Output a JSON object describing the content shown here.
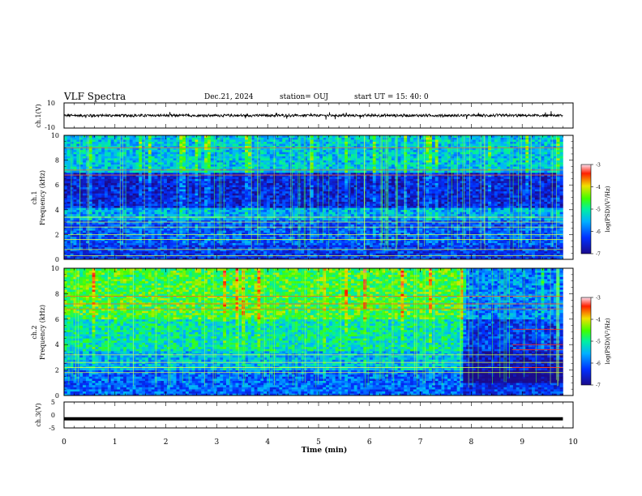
{
  "header": {
    "title": "VLF Spectra",
    "date": "Dec.21, 2024",
    "station": "station= OUJ",
    "start_ut": "start  UT =  15: 40: 0"
  },
  "chart_data": [
    {
      "id": "ch1-waveform",
      "type": "line",
      "ylabel": "ch.1(V)",
      "ylim": [
        -10,
        10
      ],
      "yticks": [
        "10",
        "-10"
      ],
      "xlim": [
        0,
        10
      ],
      "note": "noisy waveform centred near 0 V, amplitude about ±1.5 V, from 0 to ~9.8 min"
    },
    {
      "id": "ch1-spectrogram",
      "type": "heatmap",
      "ylabel_line1": "ch.1",
      "ylabel_line2": "Frequency  (kHz)",
      "ylim": [
        0,
        10
      ],
      "yticks": [
        "0",
        "2",
        "4",
        "6",
        "8",
        "10"
      ],
      "xlim": [
        0,
        10
      ],
      "data_end_min": 9.8,
      "colorbar": {
        "label": "log(PSD)(V²/Hz)",
        "range": [
          -7,
          -3
        ],
        "ticks": [
          "-3",
          "-4",
          "-5",
          "-6",
          "-7"
        ]
      },
      "bands": [
        {
          "f0": 0.0,
          "f1": 1.2,
          "level": -6.3
        },
        {
          "f0": 1.2,
          "f1": 3.2,
          "level": -6.1
        },
        {
          "f0": 3.2,
          "f1": 4.2,
          "level": -5.6
        },
        {
          "f0": 4.2,
          "f1": 7.0,
          "level": -6.5
        },
        {
          "f0": 7.0,
          "f1": 10.0,
          "level": -5.4
        }
      ],
      "lines_khz": [
        0.3,
        0.8,
        1.6,
        2.0,
        2.6,
        3.0,
        3.4,
        6.8,
        7.2,
        9.0
      ]
    },
    {
      "id": "ch2-spectrogram",
      "type": "heatmap",
      "ylabel_line1": "ch.2",
      "ylabel_line2": "Frequency  (kHz)",
      "ylim": [
        0,
        10
      ],
      "yticks": [
        "0",
        "2",
        "4",
        "6",
        "8",
        "10"
      ],
      "xlim": [
        0,
        10
      ],
      "data_end_min": 9.8,
      "colorbar": {
        "label": "log(PSD)(V²/Hz)",
        "range": [
          -7,
          -3
        ],
        "ticks": [
          "-3",
          "-4",
          "-5",
          "-6",
          "-7"
        ]
      },
      "bands": [
        {
          "f0": 0.0,
          "f1": 2.0,
          "level": -6.0
        },
        {
          "f0": 2.0,
          "f1": 3.5,
          "level": -5.5
        },
        {
          "f0": 3.5,
          "f1": 6.0,
          "level": -5.1
        },
        {
          "f0": 6.0,
          "f1": 10.0,
          "level": -4.6
        }
      ],
      "lines_khz": [
        1.8,
        2.2,
        2.6,
        3.2,
        6.8,
        7.2,
        7.8
      ],
      "late_section": {
        "from_min": 7.8,
        "level_shift": -1.2,
        "extra_lines_khz": [
          2.2,
          3.6,
          4.0,
          5.2
        ]
      }
    },
    {
      "id": "ch3-waveform",
      "type": "line",
      "ylabel": "ch.3(V)",
      "ylim": [
        -5,
        5
      ],
      "yticks": [
        "5",
        "0",
        "-5"
      ],
      "xlim": [
        0,
        10
      ],
      "level": -1.5,
      "note": "flat thick trace near -1.5 V"
    }
  ],
  "xaxis": {
    "label": "Time  (min)",
    "ticks": [
      "0",
      "1",
      "2",
      "3",
      "4",
      "5",
      "6",
      "7",
      "8",
      "9",
      "10"
    ]
  }
}
